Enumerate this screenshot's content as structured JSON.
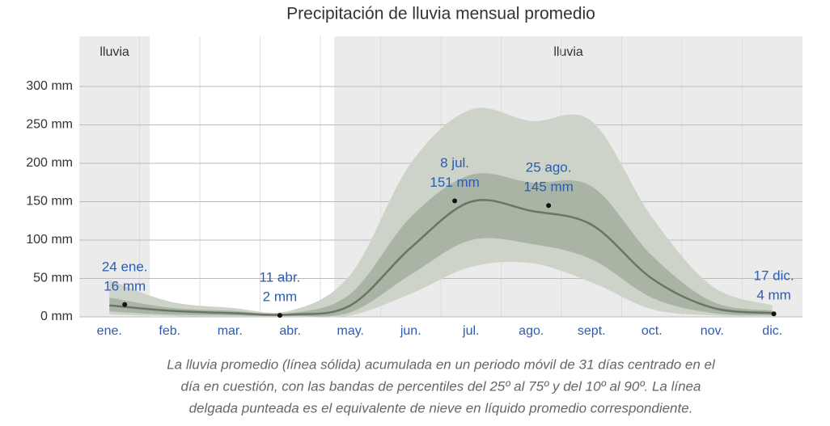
{
  "chart_data": {
    "type": "line",
    "title": "Precipitación de lluvia mensual promedio",
    "categories": [
      "ene.",
      "feb.",
      "mar.",
      "abr.",
      "may.",
      "jun.",
      "jul.",
      "ago.",
      "sept.",
      "oct.",
      "nov.",
      "dic."
    ],
    "series": [
      {
        "name": "p90",
        "color": "#cdd3c8",
        "values": [
          48,
          20,
          12,
          8,
          55,
          200,
          270,
          255,
          255,
          130,
          40,
          15
        ]
      },
      {
        "name": "p10",
        "color": "#cdd3c8",
        "values": [
          3,
          1,
          0,
          0,
          2,
          30,
          65,
          70,
          45,
          10,
          2,
          1
        ]
      },
      {
        "name": "p75",
        "color": "#aab4a5",
        "values": [
          25,
          12,
          8,
          5,
          30,
          130,
          185,
          175,
          170,
          80,
          20,
          8
        ]
      },
      {
        "name": "p25",
        "color": "#aab4a5",
        "values": [
          7,
          3,
          2,
          1,
          6,
          55,
          100,
          95,
          75,
          25,
          5,
          2
        ]
      },
      {
        "name": "promedio",
        "color": "#6b7565",
        "values": [
          15,
          8,
          5,
          3,
          15,
          90,
          150,
          138,
          120,
          50,
          12,
          5
        ]
      }
    ],
    "ylim": [
      0,
      300
    ],
    "yticks": [
      {
        "value": 0,
        "label": "0 mm"
      },
      {
        "value": 50,
        "label": "50 mm"
      },
      {
        "value": 100,
        "label": "100 mm"
      },
      {
        "value": 150,
        "label": "150 mm"
      },
      {
        "value": 200,
        "label": "200 mm"
      },
      {
        "value": 250,
        "label": "250 mm"
      },
      {
        "value": 300,
        "label": "300 mm"
      }
    ],
    "seasons": [
      {
        "label": "lluvia",
        "start": 0,
        "end": 1.17
      },
      {
        "label": "lluvia",
        "start": 4.23,
        "end": 12
      }
    ],
    "annotations": [
      {
        "label": "24 ene.",
        "value": 16,
        "value_label": "16 mm"
      },
      {
        "label": "11 abr.",
        "value": 2,
        "value_label": "2 mm"
      },
      {
        "label": "8 jul.",
        "value": 151,
        "value_label": "151 mm"
      },
      {
        "label": "25 ago.",
        "value": 145,
        "value_label": "145 mm"
      },
      {
        "label": "17 dic.",
        "value": 4,
        "value_label": "4 mm"
      }
    ],
    "caption": [
      "La lluvia promedio (línea sólida) acumulada en un periodo móvil de 31 días centrado en el",
      "día en cuestión, con las bandas de percentiles del 25º al 75º y del 10º al 90º. La línea",
      "delgada punteada es el equivalente de nieve en líquido promedio correspondiente."
    ]
  }
}
